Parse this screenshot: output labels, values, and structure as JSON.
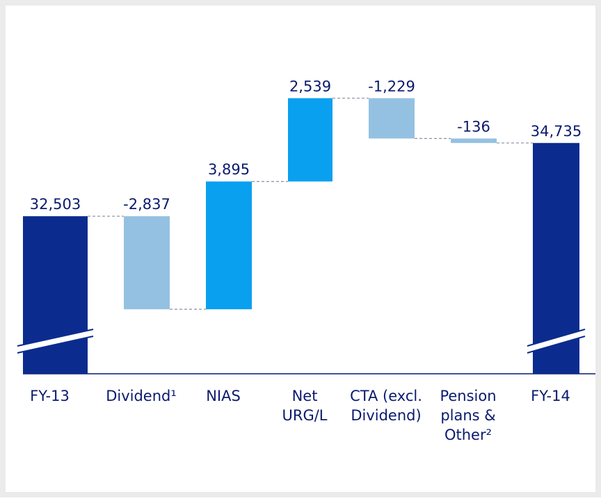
{
  "chart_data": {
    "type": "waterfall",
    "categories": [
      "FY-13",
      "Dividend¹",
      "NIAS",
      "Net URG/L",
      "CTA (excl. Dividend)",
      "Pension plans & Other²",
      "FY-14"
    ],
    "values": [
      32503,
      -2837,
      3895,
      2539,
      -1229,
      -136,
      34735
    ],
    "value_labels": [
      "32,503",
      "-2,837",
      "3,895",
      "2,539",
      "-1,229",
      "-136",
      "34,735"
    ],
    "ylim": [
      27700,
      38500
    ],
    "total_color": "#0b2c8e",
    "increase_color": "#0aa0f0",
    "decrease_color": "#94c1e2",
    "broken_axis": true
  }
}
